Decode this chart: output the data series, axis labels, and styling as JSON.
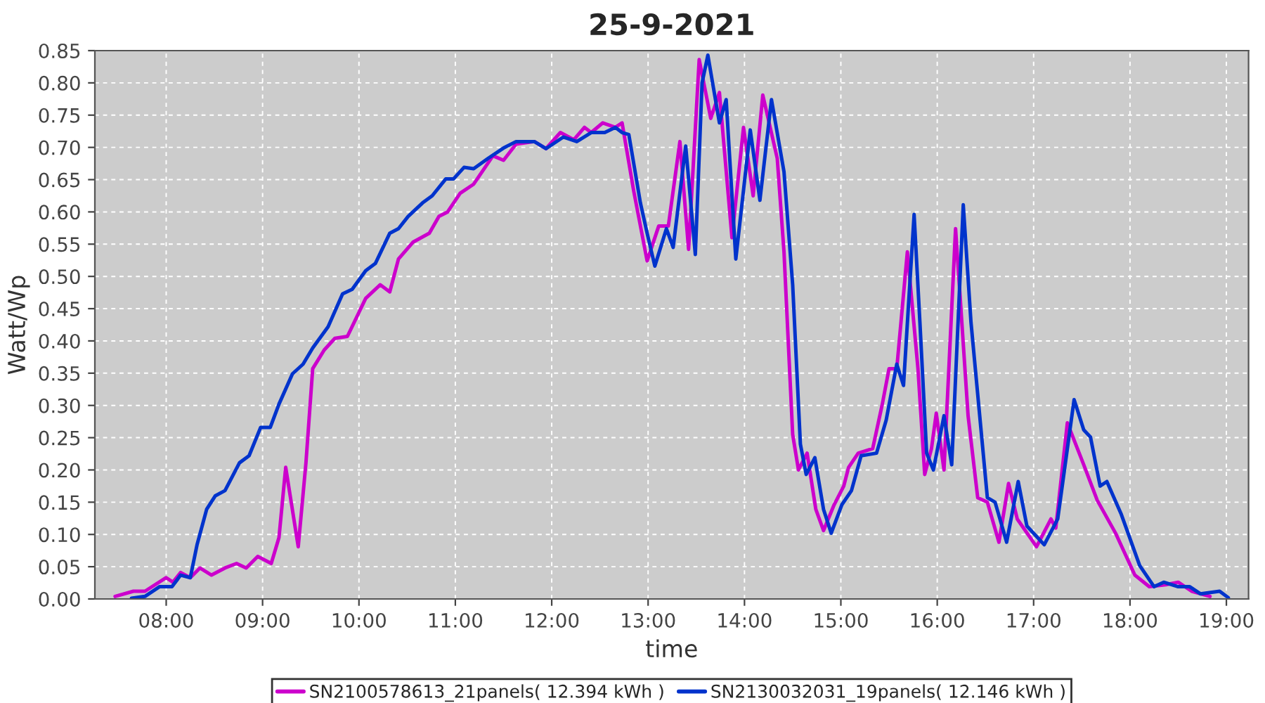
{
  "chart_data": {
    "type": "line",
    "title": "25-9-2021",
    "xlabel": "time",
    "ylabel": "Watt/Wp",
    "xlim": [
      7.26,
      19.23
    ],
    "xticks": [
      {
        "value": 8,
        "label": "08:00"
      },
      {
        "value": 9,
        "label": "09:00"
      },
      {
        "value": 10,
        "label": "10:00"
      },
      {
        "value": 11,
        "label": "11:00"
      },
      {
        "value": 12,
        "label": "12:00"
      },
      {
        "value": 13,
        "label": "13:00"
      },
      {
        "value": 14,
        "label": "14:00"
      },
      {
        "value": 15,
        "label": "15:00"
      },
      {
        "value": 16,
        "label": "16:00"
      },
      {
        "value": 17,
        "label": "17:00"
      },
      {
        "value": 18,
        "label": "18:00"
      },
      {
        "value": 19,
        "label": "19:00"
      }
    ],
    "ylim": [
      0,
      0.85
    ],
    "yticks": [
      {
        "value": 0,
        "label": "0.00"
      },
      {
        "value": 0.05,
        "label": "0.05"
      },
      {
        "value": 0.1,
        "label": "0.10"
      },
      {
        "value": 0.15,
        "label": "0.15"
      },
      {
        "value": 0.2,
        "label": "0.20"
      },
      {
        "value": 0.25,
        "label": "0.25"
      },
      {
        "value": 0.3,
        "label": "0.30"
      },
      {
        "value": 0.35,
        "label": "0.35"
      },
      {
        "value": 0.4,
        "label": "0.40"
      },
      {
        "value": 0.45,
        "label": "0.45"
      },
      {
        "value": 0.5,
        "label": "0.50"
      },
      {
        "value": 0.55,
        "label": "0.55"
      },
      {
        "value": 0.6,
        "label": "0.60"
      },
      {
        "value": 0.65,
        "label": "0.65"
      },
      {
        "value": 0.7,
        "label": "0.70"
      },
      {
        "value": 0.75,
        "label": "0.75"
      },
      {
        "value": 0.8,
        "label": "0.80"
      },
      {
        "value": 0.85,
        "label": "0.85"
      }
    ],
    "grid": true,
    "legend": "bottom",
    "line_style": "solid",
    "series": [
      {
        "name": "SN2100578613_21panels( 12.394 kWh )",
        "color": "#cc00cc",
        "x": [
          7.47,
          7.66,
          7.78,
          8.0,
          8.07,
          8.15,
          8.25,
          8.35,
          8.47,
          8.61,
          8.73,
          8.83,
          8.95,
          9.09,
          9.17,
          9.24,
          9.37,
          9.45,
          9.52,
          9.64,
          9.75,
          9.88,
          10.07,
          10.22,
          10.32,
          10.41,
          10.56,
          10.73,
          10.83,
          10.92,
          11.05,
          11.19,
          11.39,
          11.5,
          11.63,
          11.82,
          11.94,
          12.09,
          12.23,
          12.34,
          12.41,
          12.53,
          12.66,
          12.73,
          12.85,
          12.99,
          13.11,
          13.21,
          13.33,
          13.42,
          13.53,
          13.65,
          13.74,
          13.87,
          13.99,
          14.09,
          14.19,
          14.34,
          14.41,
          14.5,
          14.56,
          14.65,
          14.74,
          14.82,
          14.93,
          15.03,
          15.08,
          15.18,
          15.33,
          15.43,
          15.5,
          15.58,
          15.69,
          15.8,
          15.87,
          15.94,
          15.99,
          16.07,
          16.19,
          16.32,
          16.42,
          16.52,
          16.64,
          16.74,
          16.83,
          17.03,
          17.18,
          17.23,
          17.35,
          17.52,
          17.66,
          17.85,
          18.05,
          18.2,
          18.37,
          18.5,
          18.64,
          18.83
        ],
        "values": [
          0.004,
          0.012,
          0.012,
          0.033,
          0.026,
          0.041,
          0.033,
          0.048,
          0.037,
          0.048,
          0.055,
          0.048,
          0.066,
          0.055,
          0.095,
          0.204,
          0.081,
          0.211,
          0.357,
          0.386,
          0.404,
          0.407,
          0.466,
          0.487,
          0.476,
          0.527,
          0.553,
          0.567,
          0.593,
          0.6,
          0.629,
          0.643,
          0.687,
          0.68,
          0.705,
          0.709,
          0.698,
          0.723,
          0.712,
          0.731,
          0.723,
          0.738,
          0.731,
          0.738,
          0.633,
          0.524,
          0.578,
          0.578,
          0.709,
          0.542,
          0.836,
          0.745,
          0.785,
          0.56,
          0.731,
          0.625,
          0.781,
          0.683,
          0.538,
          0.255,
          0.2,
          0.226,
          0.139,
          0.106,
          0.146,
          0.175,
          0.204,
          0.226,
          0.233,
          0.302,
          0.357,
          0.357,
          0.538,
          0.357,
          0.193,
          0.233,
          0.288,
          0.2,
          0.574,
          0.284,
          0.157,
          0.15,
          0.088,
          0.179,
          0.124,
          0.081,
          0.124,
          0.11,
          0.273,
          0.208,
          0.153,
          0.102,
          0.037,
          0.019,
          0.022,
          0.026,
          0.012,
          0.004
        ]
      },
      {
        "name": "SN2130032031_19panels( 12.146 kWh )",
        "color": "#0033cc",
        "x": [
          7.64,
          7.78,
          7.93,
          8.06,
          8.15,
          8.25,
          8.32,
          8.42,
          8.51,
          8.61,
          8.76,
          8.86,
          8.98,
          9.08,
          9.17,
          9.31,
          9.42,
          9.52,
          9.68,
          9.83,
          9.93,
          10.07,
          10.17,
          10.32,
          10.41,
          10.51,
          10.66,
          10.76,
          10.9,
          10.98,
          11.09,
          11.19,
          11.34,
          11.5,
          11.63,
          11.82,
          11.94,
          12.12,
          12.26,
          12.41,
          12.55,
          12.66,
          12.73,
          12.8,
          12.92,
          12.99,
          13.07,
          13.19,
          13.26,
          13.39,
          13.49,
          13.56,
          13.62,
          13.74,
          13.81,
          13.91,
          14.06,
          14.16,
          14.28,
          14.41,
          14.5,
          14.58,
          14.64,
          14.73,
          14.82,
          14.9,
          15.01,
          15.11,
          15.21,
          15.37,
          15.47,
          15.58,
          15.65,
          15.76,
          15.82,
          15.89,
          15.96,
          16.07,
          16.15,
          16.27,
          16.35,
          16.52,
          16.6,
          16.72,
          16.84,
          16.93,
          17.11,
          17.25,
          17.42,
          17.52,
          17.59,
          17.69,
          17.76,
          17.91,
          18.1,
          18.25,
          18.35,
          18.5,
          18.62,
          18.73,
          18.93,
          19.02
        ],
        "values": [
          0.001,
          0.004,
          0.019,
          0.019,
          0.037,
          0.033,
          0.084,
          0.139,
          0.16,
          0.168,
          0.211,
          0.222,
          0.266,
          0.266,
          0.302,
          0.349,
          0.364,
          0.389,
          0.422,
          0.473,
          0.48,
          0.509,
          0.52,
          0.567,
          0.574,
          0.593,
          0.614,
          0.625,
          0.651,
          0.651,
          0.669,
          0.667,
          0.683,
          0.699,
          0.709,
          0.709,
          0.698,
          0.716,
          0.709,
          0.723,
          0.723,
          0.731,
          0.723,
          0.72,
          0.614,
          0.567,
          0.516,
          0.574,
          0.545,
          0.702,
          0.534,
          0.8,
          0.843,
          0.738,
          0.774,
          0.527,
          0.727,
          0.618,
          0.774,
          0.662,
          0.487,
          0.24,
          0.193,
          0.219,
          0.139,
          0.102,
          0.146,
          0.168,
          0.222,
          0.226,
          0.277,
          0.364,
          0.331,
          0.596,
          0.429,
          0.226,
          0.2,
          0.284,
          0.208,
          0.611,
          0.429,
          0.157,
          0.15,
          0.088,
          0.182,
          0.113,
          0.084,
          0.124,
          0.309,
          0.262,
          0.251,
          0.175,
          0.182,
          0.131,
          0.052,
          0.019,
          0.026,
          0.019,
          0.019,
          0.008,
          0.012,
          0.002
        ]
      }
    ]
  }
}
